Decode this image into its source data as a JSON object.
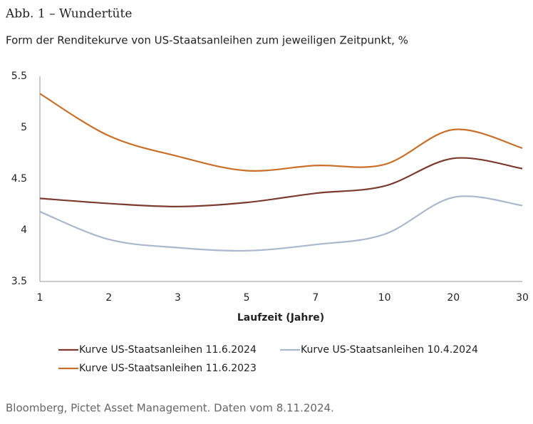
{
  "chart_data": {
    "type": "line",
    "title": "Abb. 1 – Wundertüte",
    "subtitle": "Form der Renditekurve von US-Staatsanleihen zum jeweiligen Zeitpunkt, %",
    "x_label": "Laufzeit (Jahre)",
    "source": "Bloomberg, Pictet Asset Management. Daten vom 8.11.2024.",
    "categories": [
      "1",
      "2",
      "3",
      "5",
      "7",
      "10",
      "20",
      "30"
    ],
    "series": [
      {
        "name": "Kurve US-Staatsanleihen 11.6.2024",
        "color": "#7b3b2f",
        "values": [
          4.31,
          4.26,
          4.23,
          4.27,
          4.36,
          4.43,
          4.7,
          4.6
        ]
      },
      {
        "name": "Kurve US-Staatsanleihen 10.4.2024",
        "color": "#a9b8cd",
        "values": [
          4.18,
          3.91,
          3.83,
          3.8,
          3.86,
          3.96,
          4.32,
          4.24
        ]
      },
      {
        "name": "Kurve US-Staatsanleihen 11.6.2023",
        "color": "#c8702a",
        "values": [
          5.33,
          4.92,
          4.72,
          4.58,
          4.63,
          4.64,
          4.98,
          4.8
        ]
      }
    ],
    "ylim": [
      3.5,
      5.5
    ],
    "yticks": [
      3.5,
      4,
      4.5,
      5,
      5.5
    ],
    "grid": false
  }
}
